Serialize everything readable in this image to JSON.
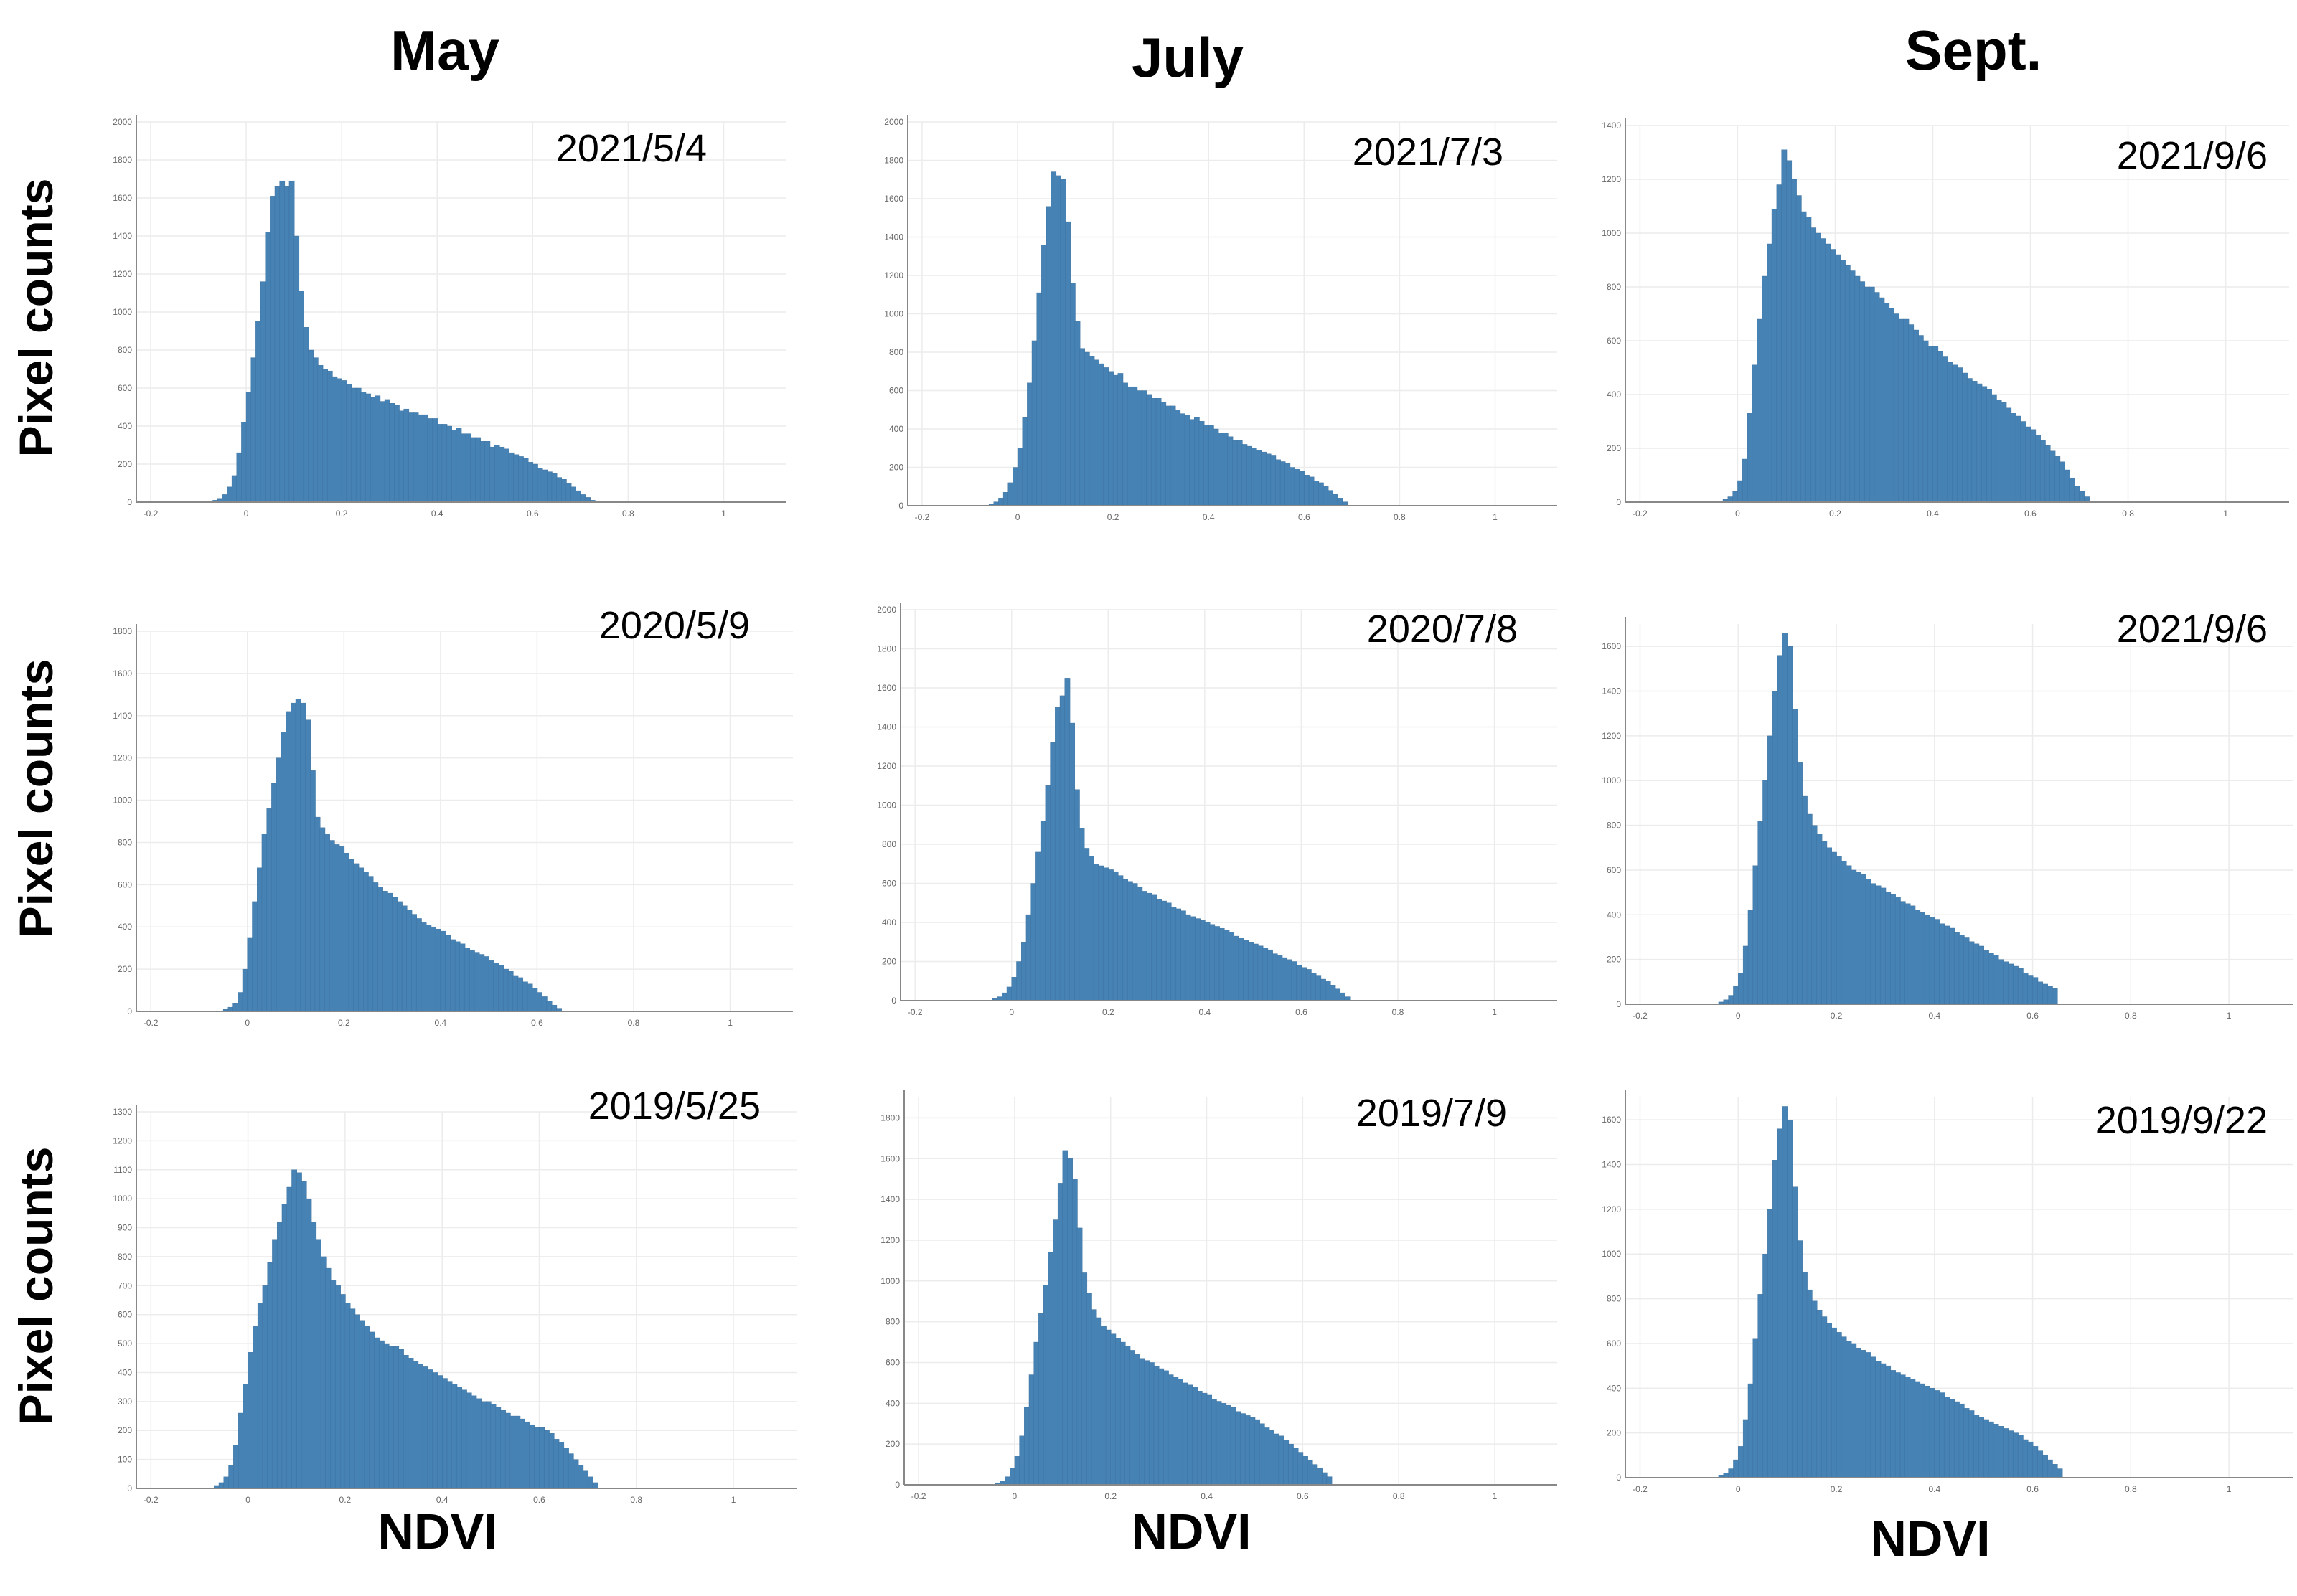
{
  "columns": [
    "May",
    "July",
    "Sept."
  ],
  "row_label": "Pixel counts",
  "x_label": "NDVI",
  "colors": {
    "bar": "#4682b4",
    "bar_edge": "#3a6e9c",
    "grid": "#ececec",
    "axis": "#888888"
  },
  "chart_data": [
    {
      "type": "bar",
      "date": "2021/5/4",
      "ylim": [
        0,
        2000
      ],
      "yticks": [
        0,
        200,
        400,
        600,
        800,
        1000,
        1200,
        1400,
        1600,
        1800,
        2000
      ],
      "xticks": [
        "-0.2",
        "0",
        "0.2",
        "0.4",
        "0.6",
        "0.8",
        "1"
      ],
      "xlim": [
        -0.23,
        1.13
      ],
      "bin_start": -0.07,
      "bin_width": 0.01,
      "values": [
        10,
        20,
        40,
        80,
        140,
        260,
        420,
        580,
        760,
        950,
        1160,
        1420,
        1610,
        1660,
        1690,
        1660,
        1690,
        1400,
        1110,
        920,
        800,
        760,
        720,
        700,
        690,
        660,
        650,
        640,
        620,
        600,
        600,
        580,
        570,
        550,
        560,
        530,
        540,
        520,
        510,
        480,
        490,
        470,
        470,
        460,
        460,
        440,
        440,
        410,
        410,
        400,
        380,
        390,
        360,
        360,
        340,
        340,
        320,
        320,
        290,
        300,
        290,
        280,
        260,
        250,
        240,
        230,
        210,
        200,
        180,
        170,
        160,
        150,
        130,
        120,
        100,
        80,
        60,
        40,
        25,
        10
      ]
    },
    {
      "type": "bar",
      "date": "2021/7/3",
      "ylim": [
        0,
        2000
      ],
      "yticks": [
        0,
        200,
        400,
        600,
        800,
        1000,
        1200,
        1400,
        1600,
        1800,
        2000
      ],
      "xticks": [
        "-0.2",
        "0",
        "0.2",
        "0.4",
        "0.6",
        "0.8",
        "1"
      ],
      "xlim": [
        -0.23,
        1.13
      ],
      "bin_start": -0.06,
      "bin_width": 0.01,
      "values": [
        10,
        20,
        40,
        70,
        120,
        200,
        300,
        460,
        640,
        860,
        1110,
        1360,
        1560,
        1740,
        1720,
        1700,
        1480,
        1160,
        960,
        820,
        800,
        780,
        760,
        740,
        720,
        700,
        680,
        690,
        640,
        620,
        620,
        600,
        600,
        580,
        560,
        560,
        540,
        520,
        520,
        500,
        480,
        470,
        450,
        460,
        440,
        420,
        420,
        400,
        380,
        380,
        360,
        340,
        340,
        320,
        310,
        300,
        290,
        280,
        270,
        260,
        240,
        230,
        220,
        200,
        190,
        180,
        160,
        150,
        130,
        120,
        100,
        80,
        60,
        40,
        20
      ]
    },
    {
      "type": "bar",
      "date": "2021/9/6",
      "ylim": [
        0,
        1400
      ],
      "yticks": [
        0,
        200,
        400,
        600,
        800,
        1000,
        1200,
        1400
      ],
      "xticks": [
        "-0.2",
        "0",
        "0.2",
        "0.4",
        "0.6",
        "0.8",
        "1"
      ],
      "xlim": [
        -0.23,
        1.13
      ],
      "bin_start": -0.03,
      "bin_width": 0.01,
      "values": [
        10,
        20,
        40,
        80,
        160,
        330,
        510,
        680,
        840,
        960,
        1090,
        1180,
        1310,
        1270,
        1200,
        1140,
        1080,
        1060,
        1020,
        1000,
        980,
        960,
        940,
        920,
        900,
        880,
        860,
        840,
        820,
        800,
        800,
        780,
        760,
        740,
        720,
        700,
        680,
        680,
        660,
        640,
        620,
        600,
        580,
        580,
        560,
        540,
        520,
        510,
        500,
        480,
        460,
        450,
        440,
        430,
        420,
        400,
        380,
        370,
        350,
        330,
        320,
        300,
        280,
        270,
        250,
        230,
        210,
        190,
        170,
        150,
        120,
        90,
        60,
        40,
        20
      ]
    },
    {
      "type": "bar",
      "date": "2020/5/9",
      "ylim": [
        0,
        1800
      ],
      "yticks": [
        0,
        200,
        400,
        600,
        800,
        1000,
        1200,
        1400,
        1600,
        1800
      ],
      "xticks": [
        "-0.2",
        "0",
        "0.2",
        "0.4",
        "0.6",
        "0.8",
        "1"
      ],
      "xlim": [
        -0.23,
        1.13
      ],
      "bin_start": -0.05,
      "bin_width": 0.01,
      "values": [
        10,
        20,
        40,
        90,
        200,
        350,
        520,
        680,
        840,
        960,
        1080,
        1200,
        1320,
        1420,
        1460,
        1480,
        1460,
        1380,
        1140,
        920,
        870,
        840,
        810,
        790,
        780,
        750,
        720,
        700,
        680,
        660,
        640,
        610,
        590,
        570,
        560,
        540,
        520,
        500,
        480,
        460,
        440,
        420,
        410,
        400,
        390,
        380,
        360,
        340,
        330,
        320,
        300,
        290,
        280,
        270,
        260,
        240,
        230,
        220,
        200,
        190,
        170,
        160,
        140,
        130,
        110,
        90,
        70,
        50,
        30,
        15
      ]
    },
    {
      "type": "bar",
      "date": "2020/7/8",
      "ylim": [
        0,
        2000
      ],
      "yticks": [
        0,
        200,
        400,
        600,
        800,
        1000,
        1200,
        1400,
        1600,
        1800,
        2000
      ],
      "xticks": [
        "-0.2",
        "0",
        "0.2",
        "0.4",
        "0.6",
        "0.8",
        "1"
      ],
      "xlim": [
        -0.23,
        1.13
      ],
      "bin_start": -0.04,
      "bin_width": 0.01,
      "values": [
        10,
        20,
        40,
        70,
        120,
        200,
        300,
        440,
        600,
        760,
        920,
        1100,
        1320,
        1500,
        1560,
        1650,
        1420,
        1080,
        880,
        780,
        740,
        700,
        690,
        680,
        670,
        660,
        640,
        620,
        610,
        600,
        580,
        560,
        550,
        540,
        520,
        510,
        500,
        480,
        470,
        460,
        440,
        430,
        420,
        410,
        400,
        390,
        380,
        370,
        360,
        350,
        330,
        320,
        310,
        300,
        290,
        280,
        270,
        260,
        240,
        230,
        220,
        210,
        200,
        180,
        170,
        160,
        140,
        130,
        110,
        100,
        80,
        60,
        40,
        20
      ]
    },
    {
      "type": "bar",
      "date": "2021/9/6",
      "ylim": [
        0,
        1700
      ],
      "yticks": [
        0,
        200,
        400,
        600,
        800,
        1000,
        1200,
        1400,
        1600
      ],
      "xticks": [
        "-0.2",
        "0",
        "0.2",
        "0.4",
        "0.6",
        "0.8",
        "1"
      ],
      "xlim": [
        -0.23,
        1.13
      ],
      "bin_start": -0.04,
      "bin_width": 0.01,
      "values": [
        10,
        20,
        40,
        80,
        140,
        260,
        420,
        620,
        820,
        1000,
        1200,
        1400,
        1560,
        1660,
        1600,
        1320,
        1080,
        930,
        850,
        800,
        760,
        730,
        700,
        680,
        660,
        640,
        620,
        600,
        590,
        580,
        560,
        540,
        530,
        520,
        500,
        490,
        480,
        460,
        450,
        440,
        420,
        410,
        400,
        390,
        380,
        360,
        350,
        340,
        320,
        310,
        300,
        280,
        270,
        260,
        240,
        230,
        220,
        200,
        190,
        180,
        170,
        160,
        140,
        130,
        120,
        100,
        90,
        80,
        70
      ]
    },
    {
      "type": "bar",
      "date": "2019/5/25",
      "ylim": [
        0,
        1300
      ],
      "yticks": [
        0,
        100,
        200,
        300,
        400,
        500,
        600,
        700,
        800,
        900,
        1000,
        1100,
        1200,
        1300
      ],
      "xticks": [
        "-0.2",
        "0",
        "0.2",
        "0.4",
        "0.6",
        "0.8",
        "1"
      ],
      "xlim": [
        -0.23,
        1.13
      ],
      "bin_start": -0.07,
      "bin_width": 0.01,
      "values": [
        10,
        20,
        40,
        80,
        150,
        260,
        360,
        470,
        560,
        640,
        700,
        780,
        860,
        920,
        980,
        1040,
        1100,
        1090,
        1060,
        1000,
        920,
        860,
        800,
        760,
        720,
        700,
        670,
        640,
        620,
        600,
        580,
        560,
        540,
        520,
        510,
        500,
        490,
        490,
        480,
        460,
        450,
        440,
        430,
        420,
        410,
        400,
        390,
        380,
        370,
        360,
        350,
        340,
        330,
        320,
        310,
        300,
        300,
        290,
        280,
        270,
        260,
        250,
        250,
        240,
        230,
        220,
        210,
        210,
        200,
        190,
        170,
        160,
        140,
        120,
        100,
        80,
        60,
        40,
        20
      ]
    },
    {
      "type": "bar",
      "date": "2019/7/9",
      "ylim": [
        0,
        1900
      ],
      "yticks": [
        0,
        200,
        400,
        600,
        800,
        1000,
        1200,
        1400,
        1600,
        1800
      ],
      "xticks": [
        "-0.2",
        "0",
        "0.2",
        "0.4",
        "0.6",
        "0.8",
        "1"
      ],
      "xlim": [
        -0.23,
        1.13
      ],
      "bin_start": -0.04,
      "bin_width": 0.01,
      "values": [
        10,
        20,
        40,
        80,
        140,
        240,
        380,
        540,
        700,
        840,
        980,
        1140,
        1300,
        1480,
        1640,
        1600,
        1500,
        1260,
        1040,
        940,
        860,
        820,
        780,
        760,
        740,
        720,
        700,
        680,
        660,
        640,
        620,
        610,
        600,
        580,
        570,
        560,
        540,
        530,
        520,
        500,
        490,
        480,
        460,
        450,
        440,
        420,
        410,
        400,
        390,
        380,
        360,
        350,
        340,
        330,
        320,
        300,
        280,
        270,
        250,
        240,
        220,
        200,
        180,
        160,
        140,
        120,
        100,
        80,
        60,
        40
      ]
    },
    {
      "type": "bar",
      "date": "2019/9/22",
      "ylim": [
        0,
        1700
      ],
      "yticks": [
        0,
        200,
        400,
        600,
        800,
        1000,
        1200,
        1400,
        1600
      ],
      "xticks": [
        "-0.2",
        "0",
        "0.2",
        "0.4",
        "0.6",
        "0.8",
        "1"
      ],
      "xlim": [
        -0.23,
        1.13
      ],
      "bin_start": -0.04,
      "bin_width": 0.01,
      "values": [
        10,
        20,
        40,
        80,
        140,
        260,
        420,
        620,
        820,
        1000,
        1200,
        1420,
        1560,
        1660,
        1600,
        1300,
        1060,
        920,
        840,
        790,
        750,
        720,
        690,
        670,
        650,
        630,
        610,
        600,
        580,
        570,
        560,
        540,
        520,
        510,
        500,
        480,
        470,
        460,
        450,
        440,
        430,
        420,
        410,
        400,
        390,
        380,
        360,
        350,
        340,
        330,
        310,
        300,
        280,
        270,
        260,
        250,
        240,
        230,
        220,
        210,
        200,
        190,
        170,
        160,
        140,
        120,
        100,
        80,
        60,
        40
      ]
    }
  ]
}
